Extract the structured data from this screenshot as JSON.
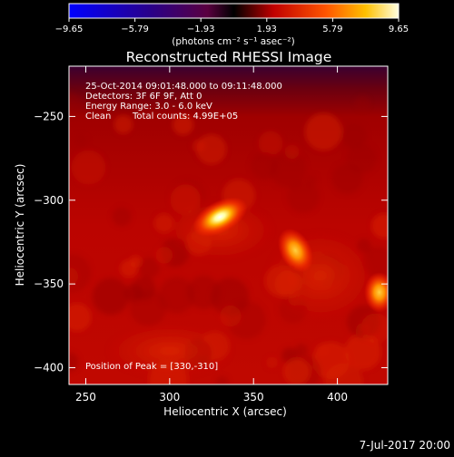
{
  "chart_data": {
    "type": "heatmap",
    "title": "Reconstructed RHESSI Image",
    "xlabel": "Heliocentric X (arcsec)",
    "ylabel": "Heliocentric Y (arcsec)",
    "xlim": [
      240,
      430
    ],
    "ylim": [
      -410,
      -220
    ],
    "x_ticks": [
      250,
      300,
      350,
      400
    ],
    "y_ticks": [
      -250,
      -300,
      -350,
      -400
    ],
    "y_tick_labels": [
      "−250",
      "−300",
      "−350",
      "−400"
    ],
    "colorbar": {
      "range": [
        -9.65,
        9.65
      ],
      "ticks": [
        -9.65,
        -5.79,
        -1.93,
        1.93,
        5.79,
        9.65
      ],
      "tick_labels": [
        "−9.65",
        "−5.79",
        "−1.93",
        "1.93",
        "5.79",
        "9.65"
      ],
      "units_label": "(photons cm⁻² s⁻¹ asec⁻²)"
    },
    "info_lines": [
      "25-Oct-2014 09:01:48.000 to 09:11:48.000",
      "Detectors: 3F 6F 9F, Att 0",
      "Energy Range: 3.0 - 6.0 keV"
    ],
    "clean_label": "Clean",
    "total_counts": "Total counts: 4.99E+05",
    "peak_label": "Position of Peak = [330,-310]",
    "sources": [
      {
        "x": 330,
        "y": -310,
        "value": 9.65
      },
      {
        "x": 375,
        "y": -330,
        "value": 7.6
      },
      {
        "x": 425,
        "y": -355,
        "value": 8.2
      }
    ]
  },
  "footer_date": "7-Jul-2017 20:00"
}
